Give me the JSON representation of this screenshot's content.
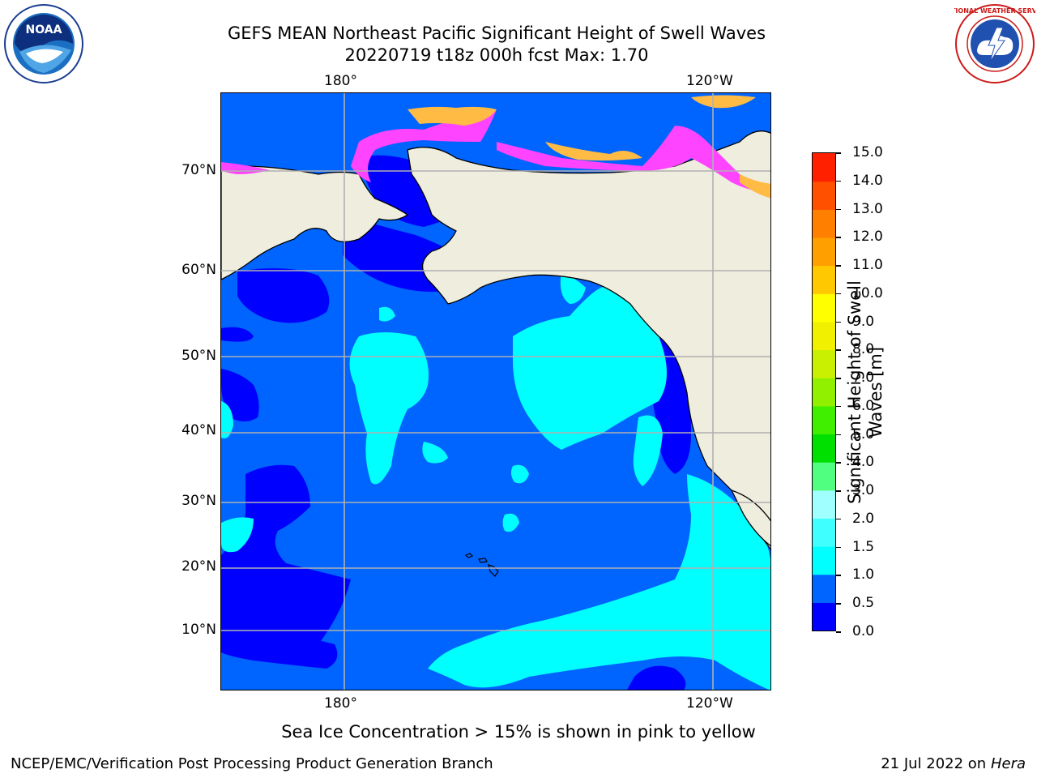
{
  "title": {
    "line1": "GEFS MEAN Northeast Pacific Significant Height of Swell Waves",
    "line2": "20220719 t18z 000h fcst   Max: 1.70"
  },
  "logos": {
    "left": "noara-logo",
    "right": "nws-logo",
    "left_text": "NOAA",
    "right_text": "NATIONAL WEATHER SERVICE"
  },
  "axes": {
    "x_top": [
      "180°",
      "120°W"
    ],
    "x_bottom": [
      "180°",
      "120°W"
    ],
    "y": [
      "70°N",
      "60°N",
      "50°N",
      "40°N",
      "30°N",
      "20°N",
      "10°N"
    ]
  },
  "colorbar": {
    "label": "Significant Height of Swell Waves [m]",
    "ticks": [
      "15.0",
      "14.0",
      "13.0",
      "12.0",
      "11.0",
      "10.0",
      "9.0",
      "8.0",
      "7.0",
      "6.0",
      "5.0",
      "4.0",
      "3.0",
      "2.0",
      "1.5",
      "1.0",
      "0.5",
      "0.0"
    ],
    "colors": [
      "#0000ff",
      "#0064ff",
      "#00ffff",
      "#40ffff",
      "#a0ffff",
      "#50ff80",
      "#00e000",
      "#40ee00",
      "#90f000",
      "#c8f000",
      "#f0f000",
      "#ffff00",
      "#ffc800",
      "#ffa000",
      "#ff8000",
      "#ff5000",
      "#ff2000"
    ]
  },
  "annotation": "Sea Ice Concentration > 15% is shown in pink to yellow",
  "footer": {
    "left": "NCEP/EMC/Verification Post Processing Product Generation Branch",
    "right_prefix": "21 Jul 2022 on ",
    "right_host": "Hera"
  },
  "colors": {
    "land": "#efedde",
    "ocean_base": "#0064ff",
    "low_swell": "#0000ff",
    "mid_swell": "#00ffff",
    "ice_pink": "#ff44ff",
    "ice_yellow": "#ffbb44"
  }
}
